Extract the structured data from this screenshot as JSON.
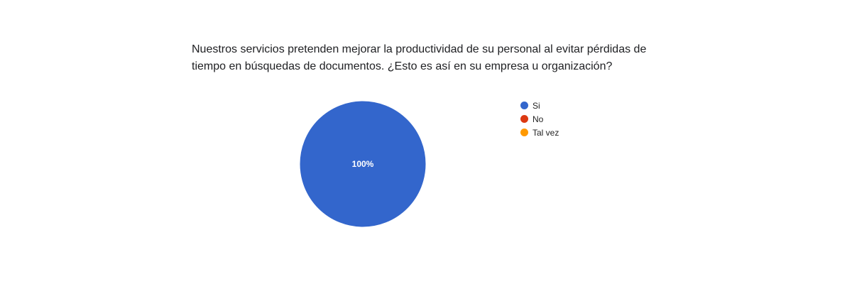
{
  "chart_data": {
    "type": "pie",
    "title_lines": [
      "Nuestros servicios pretenden mejorar la productividad de su personal al evitar pérdidas de",
      "tiempo en búsquedas de documentos. ¿Esto es así en su empresa u organización?"
    ],
    "slices": [
      {
        "label": "Si",
        "value": 100,
        "color": "#3366cc"
      },
      {
        "label": "No",
        "value": 0,
        "color": "#dc3912"
      },
      {
        "label": "Tal vez",
        "value": 0,
        "color": "#ff9900"
      }
    ],
    "data_labels": [
      "100%"
    ],
    "legend_position": "right"
  }
}
